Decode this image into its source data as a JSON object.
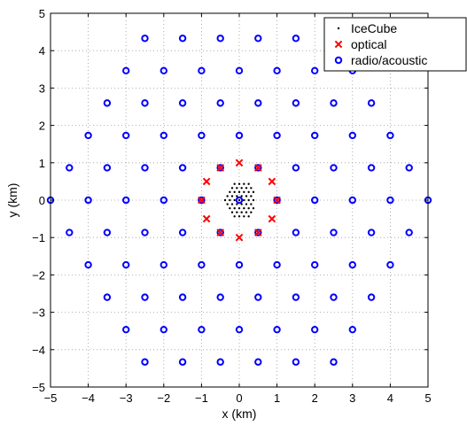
{
  "chart_data": {
    "type": "scatter",
    "xlabel": "x (km)",
    "ylabel": "y (km)",
    "xlim": [
      -5,
      5
    ],
    "ylim": [
      -5,
      5
    ],
    "xticks": [
      -5,
      -4,
      -3,
      -2,
      -1,
      0,
      1,
      2,
      3,
      4,
      5
    ],
    "yticks": [
      -5,
      -4,
      -3,
      -2,
      -1,
      0,
      1,
      2,
      3,
      4,
      5
    ],
    "grid": true,
    "legend_position": "top-right",
    "series": [
      {
        "name": "IceCube",
        "marker": "dot",
        "color": "#000000",
        "points": [
          [
            -0.125,
            0.433
          ],
          [
            0.0,
            0.433
          ],
          [
            0.125,
            0.433
          ],
          [
            0.25,
            0.433
          ],
          [
            -0.188,
            0.325
          ],
          [
            -0.063,
            0.325
          ],
          [
            0.063,
            0.325
          ],
          [
            0.188,
            0.325
          ],
          [
            0.313,
            0.325
          ],
          [
            -0.25,
            0.217
          ],
          [
            -0.125,
            0.217
          ],
          [
            0.0,
            0.217
          ],
          [
            0.125,
            0.217
          ],
          [
            0.25,
            0.217
          ],
          [
            0.375,
            0.217
          ],
          [
            -0.313,
            0.108
          ],
          [
            -0.188,
            0.108
          ],
          [
            -0.063,
            0.108
          ],
          [
            0.063,
            0.108
          ],
          [
            0.188,
            0.108
          ],
          [
            0.313,
            0.108
          ],
          [
            -0.375,
            0.0
          ],
          [
            -0.25,
            0.0
          ],
          [
            -0.125,
            0.0
          ],
          [
            0.0,
            0.0
          ],
          [
            0.125,
            0.0
          ],
          [
            0.25,
            0.0
          ],
          [
            0.375,
            0.0
          ],
          [
            -0.313,
            -0.108
          ],
          [
            -0.188,
            -0.108
          ],
          [
            -0.063,
            -0.108
          ],
          [
            0.063,
            -0.108
          ],
          [
            0.188,
            -0.108
          ],
          [
            0.313,
            -0.108
          ],
          [
            -0.25,
            -0.217
          ],
          [
            -0.125,
            -0.217
          ],
          [
            0.0,
            -0.217
          ],
          [
            0.125,
            -0.217
          ],
          [
            0.25,
            -0.217
          ],
          [
            0.375,
            -0.217
          ],
          [
            -0.188,
            -0.325
          ],
          [
            -0.063,
            -0.325
          ],
          [
            0.063,
            -0.325
          ],
          [
            0.188,
            -0.325
          ],
          [
            0.313,
            -0.325
          ],
          [
            -0.125,
            -0.433
          ],
          [
            0.0,
            -0.433
          ],
          [
            0.125,
            -0.433
          ],
          [
            0.25,
            -0.433
          ]
        ]
      },
      {
        "name": "optical",
        "marker": "x",
        "color": "#ff0000",
        "points": [
          [
            0.0,
            1.0
          ],
          [
            0.5,
            0.866
          ],
          [
            0.866,
            0.5
          ],
          [
            1.0,
            0.0
          ],
          [
            0.866,
            -0.5
          ],
          [
            0.5,
            -0.866
          ],
          [
            0.0,
            -1.0
          ],
          [
            -0.5,
            -0.866
          ],
          [
            -0.866,
            -0.5
          ],
          [
            -1.0,
            0.0
          ],
          [
            -0.866,
            0.5
          ],
          [
            -0.5,
            0.866
          ]
        ]
      },
      {
        "name": "radio/acoustic",
        "marker": "circle",
        "color": "#0000ff",
        "points": [
          [
            -2.5,
            4.33
          ],
          [
            -1.5,
            4.33
          ],
          [
            -0.5,
            4.33
          ],
          [
            0.5,
            4.33
          ],
          [
            1.5,
            4.33
          ],
          [
            2.5,
            4.33
          ],
          [
            -3.0,
            3.464
          ],
          [
            -2.0,
            3.464
          ],
          [
            -1.0,
            3.464
          ],
          [
            0.0,
            3.464
          ],
          [
            1.0,
            3.464
          ],
          [
            2.0,
            3.464
          ],
          [
            3.0,
            3.464
          ],
          [
            -3.5,
            2.598
          ],
          [
            -2.5,
            2.598
          ],
          [
            -1.5,
            2.598
          ],
          [
            -0.5,
            2.598
          ],
          [
            0.5,
            2.598
          ],
          [
            1.5,
            2.598
          ],
          [
            2.5,
            2.598
          ],
          [
            3.5,
            2.598
          ],
          [
            -4.0,
            1.732
          ],
          [
            -3.0,
            1.732
          ],
          [
            -2.0,
            1.732
          ],
          [
            -1.0,
            1.732
          ],
          [
            0.0,
            1.732
          ],
          [
            1.0,
            1.732
          ],
          [
            2.0,
            1.732
          ],
          [
            3.0,
            1.732
          ],
          [
            4.0,
            1.732
          ],
          [
            -4.5,
            0.866
          ],
          [
            -3.5,
            0.866
          ],
          [
            -2.5,
            0.866
          ],
          [
            -1.5,
            0.866
          ],
          [
            -0.5,
            0.866
          ],
          [
            0.5,
            0.866
          ],
          [
            1.5,
            0.866
          ],
          [
            2.5,
            0.866
          ],
          [
            3.5,
            0.866
          ],
          [
            4.5,
            0.866
          ],
          [
            -5.0,
            0.0
          ],
          [
            -4.0,
            0.0
          ],
          [
            -3.0,
            0.0
          ],
          [
            -2.0,
            0.0
          ],
          [
            -1.0,
            0.0
          ],
          [
            0.0,
            0.0
          ],
          [
            1.0,
            0.0
          ],
          [
            2.0,
            0.0
          ],
          [
            3.0,
            0.0
          ],
          [
            4.0,
            0.0
          ],
          [
            5.0,
            0.0
          ],
          [
            -4.5,
            -0.866
          ],
          [
            -3.5,
            -0.866
          ],
          [
            -2.5,
            -0.866
          ],
          [
            -1.5,
            -0.866
          ],
          [
            -0.5,
            -0.866
          ],
          [
            0.5,
            -0.866
          ],
          [
            1.5,
            -0.866
          ],
          [
            2.5,
            -0.866
          ],
          [
            3.5,
            -0.866
          ],
          [
            4.5,
            -0.866
          ],
          [
            -4.0,
            -1.732
          ],
          [
            -3.0,
            -1.732
          ],
          [
            -2.0,
            -1.732
          ],
          [
            -1.0,
            -1.732
          ],
          [
            0.0,
            -1.732
          ],
          [
            1.0,
            -1.732
          ],
          [
            2.0,
            -1.732
          ],
          [
            3.0,
            -1.732
          ],
          [
            4.0,
            -1.732
          ],
          [
            -3.5,
            -2.598
          ],
          [
            -2.5,
            -2.598
          ],
          [
            -1.5,
            -2.598
          ],
          [
            -0.5,
            -2.598
          ],
          [
            0.5,
            -2.598
          ],
          [
            1.5,
            -2.598
          ],
          [
            2.5,
            -2.598
          ],
          [
            3.5,
            -2.598
          ],
          [
            -3.0,
            -3.464
          ],
          [
            -2.0,
            -3.464
          ],
          [
            -1.0,
            -3.464
          ],
          [
            0.0,
            -3.464
          ],
          [
            1.0,
            -3.464
          ],
          [
            2.0,
            -3.464
          ],
          [
            3.0,
            -3.464
          ],
          [
            -2.5,
            -4.33
          ],
          [
            -1.5,
            -4.33
          ],
          [
            -0.5,
            -4.33
          ],
          [
            0.5,
            -4.33
          ],
          [
            1.5,
            -4.33
          ],
          [
            2.5,
            -4.33
          ]
        ]
      }
    ]
  }
}
